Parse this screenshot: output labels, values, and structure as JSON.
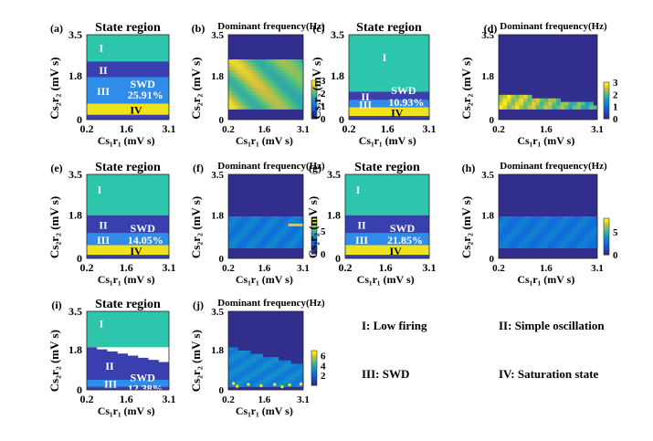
{
  "figure": {
    "panels": [
      {
        "id": "a",
        "label": "(a)",
        "kind": "state",
        "title": "State region",
        "regions": [
          {
            "roman": "I",
            "from": 2.4,
            "to": 3.5,
            "color": "#2ec5ad"
          },
          {
            "roman": "II",
            "from": 1.75,
            "to": 2.4,
            "color": "#3a3fb0"
          },
          {
            "roman": "III",
            "from": 0.65,
            "to": 1.75,
            "color": "#2f8ce8"
          },
          {
            "roman": "IV",
            "from": 0.2,
            "to": 0.65,
            "color": "#f2e21b"
          },
          {
            "roman": "",
            "from": 0.0,
            "to": 0.2,
            "color": "#3a3fb0"
          }
        ],
        "swd_label": "SWD",
        "percent": "25.91%",
        "xticks": [
          "0.2",
          "1.6",
          "3.1"
        ],
        "yticks": [
          "0",
          "1.8",
          "3.5"
        ]
      },
      {
        "id": "b",
        "label": "(b)",
        "kind": "freq",
        "title": "Dominant frequency(Hz)",
        "xticks": [
          "0.2",
          "1.6",
          "3.1"
        ],
        "yticks": [
          "0",
          "1.8",
          "3.5"
        ],
        "colorbar": {
          "ticks": [
            "0",
            "1",
            "2",
            "3"
          ],
          "max": 3
        }
      },
      {
        "id": "c",
        "label": "(c)",
        "kind": "state",
        "title": "State region",
        "regions": [
          {
            "roman": "I",
            "from": 1.15,
            "to": 3.5,
            "color": "#2ec5ad"
          },
          {
            "roman": "II",
            "from": 0.8,
            "to": 1.15,
            "color": "#3a3fb0"
          },
          {
            "roman": "III",
            "from": 0.5,
            "to": 0.8,
            "color": "#2f8ce8"
          },
          {
            "roman": "IV",
            "from": 0.15,
            "to": 0.5,
            "color": "#f2e21b"
          },
          {
            "roman": "",
            "from": 0.0,
            "to": 0.15,
            "color": "#3a3fb0"
          }
        ],
        "swd_label": "SWD",
        "percent": "10.93%",
        "xticks": [
          "0.2",
          "1.6",
          "3.1"
        ],
        "yticks": [
          "0",
          "1.8",
          "3.5"
        ]
      },
      {
        "id": "d",
        "label": "(d)",
        "kind": "freq",
        "title": "Dominant frequency(Hz)",
        "xticks": [
          "0.2",
          "1.6",
          "3.1"
        ],
        "yticks": [
          "0",
          "1.8",
          "3.5"
        ],
        "colorbar": {
          "ticks": [
            "0",
            "1",
            "2",
            "3"
          ],
          "max": 3
        }
      },
      {
        "id": "e",
        "label": "(e)",
        "kind": "state",
        "title": "State region",
        "regions": [
          {
            "roman": "I",
            "from": 1.8,
            "to": 3.5,
            "color": "#2ec5ad"
          },
          {
            "roman": "II",
            "from": 1.05,
            "to": 1.8,
            "color": "#3a3fb0"
          },
          {
            "roman": "III",
            "from": 0.55,
            "to": 1.05,
            "color": "#2f8ce8"
          },
          {
            "roman": "IV",
            "from": 0.15,
            "to": 0.55,
            "color": "#f2e21b"
          },
          {
            "roman": "",
            "from": 0.0,
            "to": 0.15,
            "color": "#3a3fb0"
          }
        ],
        "swd_label": "SWD",
        "percent": "14.05%",
        "xticks": [
          "0.2",
          "1.6",
          "3.1"
        ],
        "yticks": [
          "0",
          "1.8",
          "3.5"
        ]
      },
      {
        "id": "f",
        "label": "(f)",
        "kind": "freq",
        "title": "Dominant frequency(Hz)",
        "xticks": [
          "0.2",
          "1.6",
          "3.1"
        ],
        "yticks": [
          "0",
          "1.8",
          "3.5"
        ],
        "colorbar": {
          "ticks": [
            "0",
            "5"
          ],
          "max": 8
        }
      },
      {
        "id": "g",
        "label": "(g)",
        "kind": "state",
        "title": "State region",
        "regions": [
          {
            "roman": "I",
            "from": 1.8,
            "to": 3.5,
            "color": "#2ec5ad"
          },
          {
            "roman": "II",
            "from": 1.05,
            "to": 1.8,
            "color": "#3a3fb0"
          },
          {
            "roman": "III",
            "from": 0.55,
            "to": 1.05,
            "color": "#2f8ce8"
          },
          {
            "roman": "IV",
            "from": 0.15,
            "to": 0.55,
            "color": "#f2e21b"
          },
          {
            "roman": "",
            "from": 0.0,
            "to": 0.15,
            "color": "#3a3fb0"
          }
        ],
        "swd_label": "SWD",
        "percent": "21.85%",
        "xticks": [
          "0.2",
          "1.6",
          "3.1"
        ],
        "yticks": [
          "0",
          "1.8",
          "3.5"
        ]
      },
      {
        "id": "h",
        "label": "(h)",
        "kind": "freq",
        "title": "Dominant frequency(Hz)",
        "xticks": [
          "0.2",
          "1.6",
          "3.1"
        ],
        "yticks": [
          "0",
          "1.8",
          "3.5"
        ],
        "colorbar": {
          "ticks": [
            "0",
            "5"
          ],
          "max": 8
        }
      },
      {
        "id": "i",
        "label": "(i)",
        "kind": "state",
        "title": "State region",
        "regions": [
          {
            "roman": "I",
            "from": 1.9,
            "to": 3.5,
            "color": "#2ec5ad"
          },
          {
            "roman": "II",
            "from": 0.45,
            "to": 1.9,
            "color": "#3a3fb0"
          },
          {
            "roman": "III",
            "from": 0.15,
            "to": 0.45,
            "color": "#2f8ce8"
          },
          {
            "roman": "",
            "from": 0.0,
            "to": 0.15,
            "color": "#3a3fb0"
          }
        ],
        "swd_label": "SWD",
        "percent": "12.38%",
        "xticks": [
          "0.2",
          "1.6",
          "3.1"
        ],
        "yticks": [
          "0",
          "1.8",
          "3.5"
        ]
      },
      {
        "id": "j",
        "label": "(j)",
        "kind": "freq",
        "title": "Dominant frequency(Hz)",
        "xticks": [
          "0.2",
          "1.6",
          "3.1"
        ],
        "yticks": [
          "0",
          "1.8",
          "3.5"
        ],
        "colorbar": {
          "ticks": [
            "2",
            "4",
            "6"
          ],
          "max": 7
        }
      }
    ],
    "axis_labels": {
      "x_main": "C",
      "x_sub": "s₁r₁",
      "x_unit": "(mV s)",
      "y_main": "C",
      "y_sub": "s₂r₂",
      "y_unit": "(mV s)"
    },
    "legend": [
      {
        "key": "I",
        "text": "I: Low firing"
      },
      {
        "key": "II",
        "text": "II: Simple oscillation"
      },
      {
        "key": "III",
        "text": "III: SWD"
      },
      {
        "key": "IV",
        "text": "IV: Saturation state"
      }
    ]
  },
  "chart_data": [
    {
      "type": "heatmap",
      "panel": "(a)",
      "title": "State region",
      "xlabel": "C s1r1 (mV s)",
      "ylabel": "C s2r2 (mV s)",
      "xlim": [
        0.2,
        3.1
      ],
      "ylim": [
        0,
        3.5
      ],
      "states": [
        {
          "state": "IV",
          "y_range": [
            0.2,
            0.65
          ]
        },
        {
          "state": "III",
          "y_range": [
            0.65,
            1.75
          ]
        },
        {
          "state": "II",
          "y_range": [
            1.75,
            2.4
          ]
        },
        {
          "state": "I",
          "y_range": [
            2.4,
            3.5
          ]
        }
      ],
      "swd_percent": 25.91
    },
    {
      "type": "heatmap",
      "panel": "(b)",
      "title": "Dominant frequency(Hz)",
      "xlim": [
        0.2,
        3.1
      ],
      "ylim": [
        0,
        3.5
      ],
      "colorbar_range": [
        0,
        3
      ]
    },
    {
      "type": "heatmap",
      "panel": "(c)",
      "title": "State region",
      "xlim": [
        0.2,
        3.1
      ],
      "ylim": [
        0,
        3.5
      ],
      "states": [
        {
          "state": "IV",
          "y_range": [
            0.15,
            0.5
          ]
        },
        {
          "state": "III",
          "y_range": [
            0.5,
            0.8
          ]
        },
        {
          "state": "II",
          "y_range": [
            0.8,
            1.15
          ]
        },
        {
          "state": "I",
          "y_range": [
            1.15,
            3.5
          ]
        }
      ],
      "swd_percent": 10.93
    },
    {
      "type": "heatmap",
      "panel": "(d)",
      "title": "Dominant frequency(Hz)",
      "xlim": [
        0.2,
        3.1
      ],
      "ylim": [
        0,
        3.5
      ],
      "colorbar_range": [
        0,
        3
      ]
    },
    {
      "type": "heatmap",
      "panel": "(e)",
      "title": "State region",
      "xlim": [
        0.2,
        3.1
      ],
      "ylim": [
        0,
        3.5
      ],
      "states": [
        {
          "state": "IV",
          "y_range": [
            0.15,
            0.55
          ]
        },
        {
          "state": "III",
          "y_range": [
            0.55,
            1.05
          ]
        },
        {
          "state": "II",
          "y_range": [
            1.05,
            1.8
          ]
        },
        {
          "state": "I",
          "y_range": [
            1.8,
            3.5
          ]
        }
      ],
      "swd_percent": 14.05
    },
    {
      "type": "heatmap",
      "panel": "(f)",
      "title": "Dominant frequency(Hz)",
      "xlim": [
        0.2,
        3.1
      ],
      "ylim": [
        0,
        3.5
      ],
      "colorbar_ticks": [
        0,
        5
      ]
    },
    {
      "type": "heatmap",
      "panel": "(g)",
      "title": "State region",
      "xlim": [
        0.2,
        3.1
      ],
      "ylim": [
        0,
        3.5
      ],
      "states": [
        {
          "state": "IV",
          "y_range": [
            0.15,
            0.55
          ]
        },
        {
          "state": "III",
          "y_range": [
            0.55,
            1.05
          ]
        },
        {
          "state": "II",
          "y_range": [
            1.05,
            1.8
          ]
        },
        {
          "state": "I",
          "y_range": [
            1.8,
            3.5
          ]
        }
      ],
      "swd_percent": 21.85
    },
    {
      "type": "heatmap",
      "panel": "(h)",
      "title": "Dominant frequency(Hz)",
      "xlim": [
        0.2,
        3.1
      ],
      "ylim": [
        0,
        3.5
      ],
      "colorbar_ticks": [
        0,
        5
      ]
    },
    {
      "type": "heatmap",
      "panel": "(i)",
      "title": "State region",
      "xlim": [
        0.2,
        3.1
      ],
      "ylim": [
        0,
        3.5
      ],
      "states": [
        {
          "state": "III",
          "y_range": [
            0.15,
            0.45
          ]
        },
        {
          "state": "II",
          "y_range": [
            0.45,
            1.9
          ]
        },
        {
          "state": "I",
          "y_range": [
            1.9,
            3.5
          ]
        }
      ],
      "swd_percent": 12.38
    },
    {
      "type": "heatmap",
      "panel": "(j)",
      "title": "Dominant frequency(Hz)",
      "xlim": [
        0.2,
        3.1
      ],
      "ylim": [
        0,
        3.5
      ],
      "colorbar_ticks": [
        2,
        4,
        6
      ]
    }
  ]
}
